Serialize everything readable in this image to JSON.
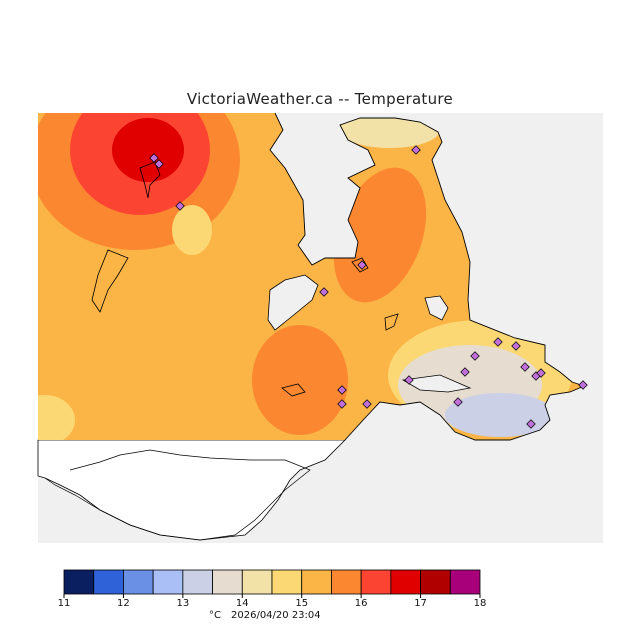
{
  "header": {
    "title": "VictoriaWeather.ca -- Temperature"
  },
  "map": {
    "region": "Southern Vancouver Island / Greater Victoria",
    "variable": "Temperature",
    "no_data_color": "#f0f0f0",
    "land_outline_color": "#000000",
    "station_marker_color": "#c06fd9"
  },
  "colorbar": {
    "unit_label": "°C",
    "timestamp": "2026/04/20 23:04",
    "ticks": [
      "11",
      "12",
      "13",
      "14",
      "15",
      "16",
      "17",
      "18"
    ],
    "bins": [
      {
        "range": "11-11.5",
        "color": "#0a1f60"
      },
      {
        "range": "11.5-12",
        "color": "#2f62d8"
      },
      {
        "range": "12-12.5",
        "color": "#6a90e6"
      },
      {
        "range": "12.5-13",
        "color": "#a9bff5"
      },
      {
        "range": "13-13.5",
        "color": "#cbd0e6"
      },
      {
        "range": "13.5-14",
        "color": "#e6ddd0"
      },
      {
        "range": "14-14.5",
        "color": "#f3e2a8"
      },
      {
        "range": "14.5-15",
        "color": "#fbd873"
      },
      {
        "range": "15-15.5",
        "color": "#fbb446"
      },
      {
        "range": "15.5-16",
        "color": "#fb8830"
      },
      {
        "range": "16-16.5",
        "color": "#fc4433"
      },
      {
        "range": "16.5-17",
        "color": "#e00000"
      },
      {
        "range": "17-17.5",
        "color": "#b00000"
      },
      {
        "range": "17.5-18",
        "color": "#a8007a"
      }
    ]
  }
}
